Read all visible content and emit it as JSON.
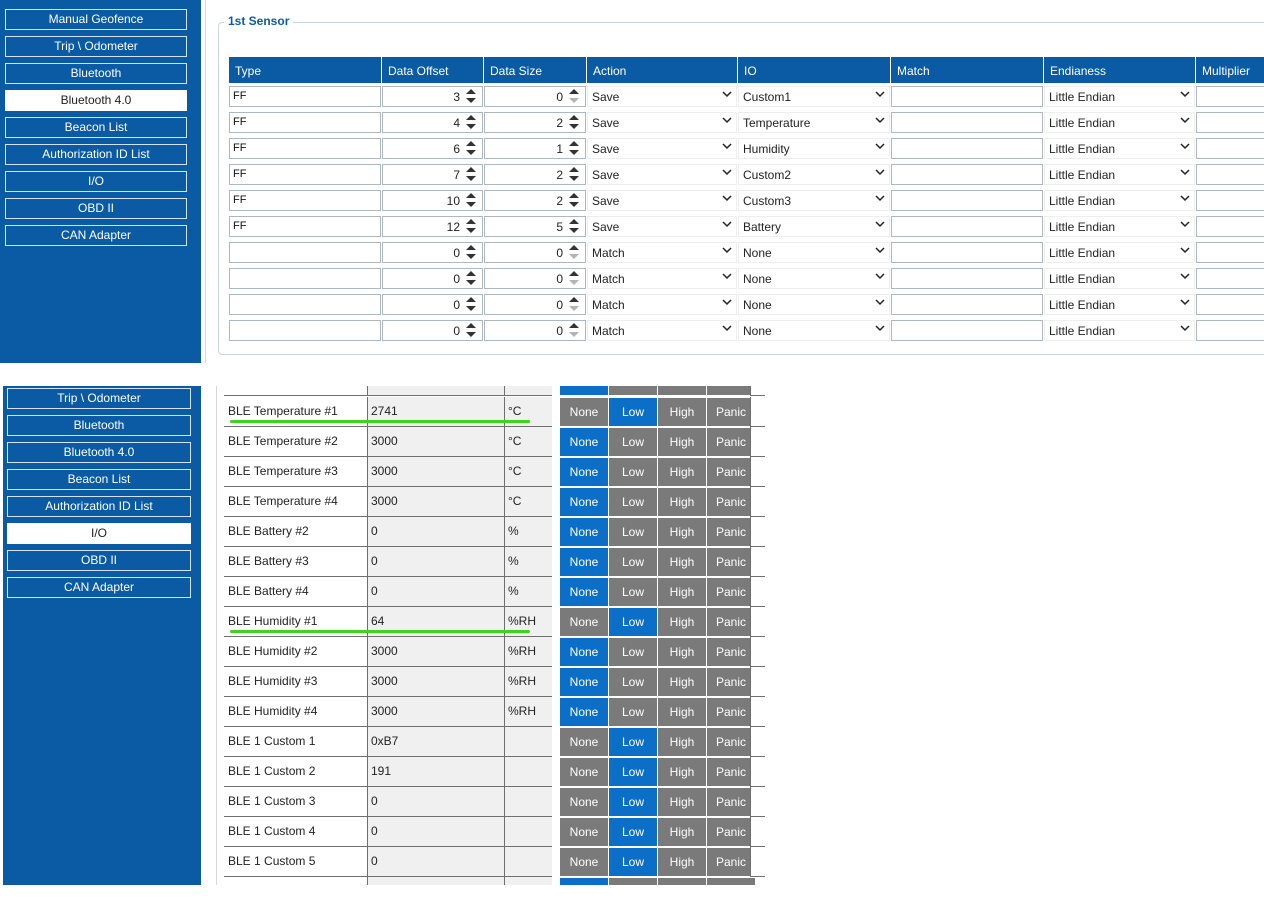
{
  "sidebar_top": {
    "items": [
      {
        "label": "Manual Geofence",
        "active": false
      },
      {
        "label": "Trip \\ Odometer",
        "active": false
      },
      {
        "label": "Bluetooth",
        "active": false
      },
      {
        "label": "Bluetooth 4.0",
        "active": true
      },
      {
        "label": "Beacon List",
        "active": false
      },
      {
        "label": "Authorization ID List",
        "active": false
      },
      {
        "label": "I/O",
        "active": false
      },
      {
        "label": "OBD II",
        "active": false
      },
      {
        "label": "CAN Adapter",
        "active": false
      }
    ]
  },
  "sensor": {
    "legend": "1st Sensor",
    "headers": [
      "Type",
      "Data Offset",
      "Data Size",
      "Action",
      "IO",
      "Match",
      "Endianess",
      "Multiplier"
    ],
    "rows": [
      {
        "type": "FF",
        "offset": "3",
        "size": "0",
        "action": "Save",
        "io": "Custom1",
        "match": "",
        "endian": "Little Endian"
      },
      {
        "type": "FF",
        "offset": "4",
        "size": "2",
        "action": "Save",
        "io": "Temperature",
        "match": "",
        "endian": "Little Endian"
      },
      {
        "type": "FF",
        "offset": "6",
        "size": "1",
        "action": "Save",
        "io": "Humidity",
        "match": "",
        "endian": "Little Endian"
      },
      {
        "type": "FF",
        "offset": "7",
        "size": "2",
        "action": "Save",
        "io": "Custom2",
        "match": "",
        "endian": "Little Endian"
      },
      {
        "type": "FF",
        "offset": "10",
        "size": "2",
        "action": "Save",
        "io": "Custom3",
        "match": "",
        "endian": "Little Endian"
      },
      {
        "type": "FF",
        "offset": "12",
        "size": "5",
        "action": "Save",
        "io": "Battery",
        "match": "",
        "endian": "Little Endian"
      },
      {
        "type": "",
        "offset": "0",
        "size": "0",
        "action": "Match",
        "io": "None",
        "match": "",
        "endian": "Little Endian"
      },
      {
        "type": "",
        "offset": "0",
        "size": "0",
        "action": "Match",
        "io": "None",
        "match": "",
        "endian": "Little Endian"
      },
      {
        "type": "",
        "offset": "0",
        "size": "0",
        "action": "Match",
        "io": "None",
        "match": "",
        "endian": "Little Endian"
      },
      {
        "type": "",
        "offset": "0",
        "size": "0",
        "action": "Match",
        "io": "None",
        "match": "",
        "endian": "Little Endian"
      }
    ]
  },
  "sidebar_bottom": {
    "items": [
      {
        "label": "Trip \\ Odometer",
        "active": false
      },
      {
        "label": "Bluetooth",
        "active": false
      },
      {
        "label": "Bluetooth 4.0",
        "active": false
      },
      {
        "label": "Beacon List",
        "active": false
      },
      {
        "label": "Authorization ID List",
        "active": false
      },
      {
        "label": "I/O",
        "active": true
      },
      {
        "label": "OBD II",
        "active": false
      },
      {
        "label": "CAN Adapter",
        "active": false
      }
    ]
  },
  "io": {
    "levels": [
      "None",
      "Low",
      "High",
      "Panic"
    ],
    "rows": [
      {
        "name": "BLE Temperature #1",
        "value": "2741",
        "unit": "°C",
        "level": "Low"
      },
      {
        "name": "BLE Temperature #2",
        "value": "3000",
        "unit": "°C",
        "level": "None"
      },
      {
        "name": "BLE Temperature #3",
        "value": "3000",
        "unit": "°C",
        "level": "None"
      },
      {
        "name": "BLE Temperature #4",
        "value": "3000",
        "unit": "°C",
        "level": "None"
      },
      {
        "name": "BLE Battery #2",
        "value": "0",
        "unit": "%",
        "level": "None"
      },
      {
        "name": "BLE Battery #3",
        "value": "0",
        "unit": "%",
        "level": "None"
      },
      {
        "name": "BLE Battery #4",
        "value": "0",
        "unit": "%",
        "level": "None"
      },
      {
        "name": "BLE Humidity #1",
        "value": "64",
        "unit": "%RH",
        "level": "Low"
      },
      {
        "name": "BLE Humidity #2",
        "value": "3000",
        "unit": "%RH",
        "level": "None"
      },
      {
        "name": "BLE Humidity #3",
        "value": "3000",
        "unit": "%RH",
        "level": "None"
      },
      {
        "name": "BLE Humidity #4",
        "value": "3000",
        "unit": "%RH",
        "level": "None"
      },
      {
        "name": "BLE 1 Custom 1",
        "value": "0xB7",
        "unit": "",
        "level": "Low"
      },
      {
        "name": "BLE 1 Custom 2",
        "value": "191",
        "unit": "",
        "level": "Low"
      },
      {
        "name": "BLE 1 Custom 3",
        "value": "0",
        "unit": "",
        "level": "Low"
      },
      {
        "name": "BLE 1 Custom 4",
        "value": "0",
        "unit": "",
        "level": "Low"
      },
      {
        "name": "BLE 1 Custom 5",
        "value": "0",
        "unit": "",
        "level": "Low"
      }
    ]
  },
  "colors": {
    "sidebar": "#0a5aa4",
    "level_on": "#0b6fc7",
    "level_off": "#7a7a7a",
    "highlight": "#3fd21f"
  }
}
